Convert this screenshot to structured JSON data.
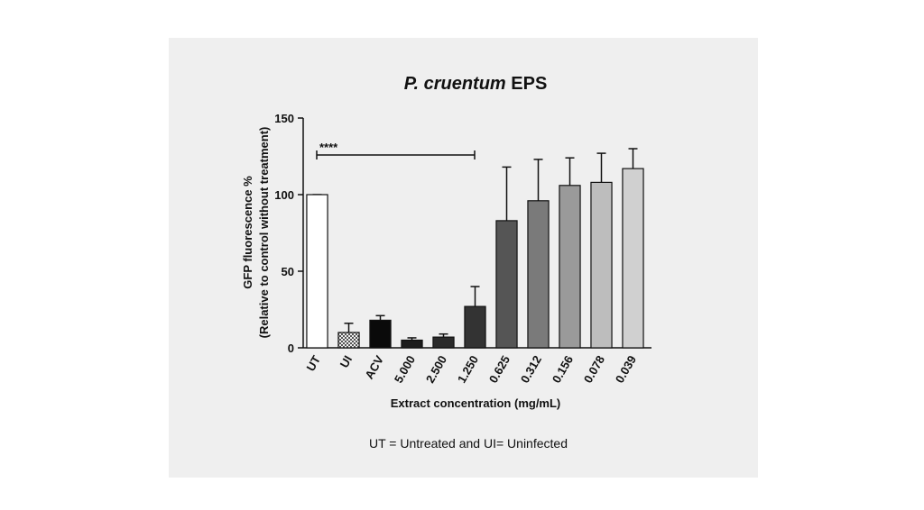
{
  "chart_data": {
    "type": "bar",
    "title": [
      "P. cruentum",
      "EPS"
    ],
    "y_label": [
      "GFP fluorescence %",
      "(Relative to control without treatment)"
    ],
    "x_label": "Extract concentration (mg/mL)",
    "annotation": "****",
    "caption": "UT = Untreated and UI= Uninfected",
    "categories": [
      "UT",
      "UI",
      "ACV",
      "5.000",
      "2.500",
      "1.250",
      "0.625",
      "0.312",
      "0.156",
      "0.078",
      "0.039"
    ],
    "values": [
      100,
      10,
      18,
      5,
      7,
      27,
      83,
      96,
      106,
      108,
      117
    ],
    "errors": [
      0,
      6,
      3,
      1.5,
      2,
      13,
      35,
      27,
      18,
      19,
      13
    ],
    "colors": [
      "#ffffff",
      "url(#checker)",
      "#0a0a0a",
      "#1c1c1c",
      "#2a2a2a",
      "#333333",
      "#555555",
      "#7a7a7a",
      "#9a9a9a",
      "#bdbdbd",
      "#d0d0d0"
    ],
    "ylim": [
      0,
      150
    ],
    "yticks": [
      0,
      50,
      100,
      150
    ]
  }
}
